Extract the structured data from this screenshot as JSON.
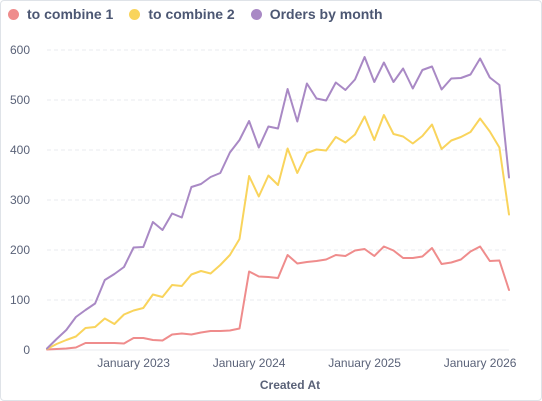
{
  "chart_data": {
    "type": "line",
    "xlabel": "Created At",
    "ylabel": "",
    "ylim": [
      0,
      600
    ],
    "yticks": [
      0,
      100,
      200,
      300,
      400,
      500,
      600
    ],
    "x_ticks": [
      {
        "label": "January 2023",
        "x": "2023-01"
      },
      {
        "label": "January 2024",
        "x": "2024-01"
      },
      {
        "label": "January 2025",
        "x": "2025-01"
      },
      {
        "label": "January 2026",
        "x": "2026-01"
      }
    ],
    "x": [
      "2022-04",
      "2022-05",
      "2022-06",
      "2022-07",
      "2022-08",
      "2022-09",
      "2022-10",
      "2022-11",
      "2022-12",
      "2023-01",
      "2023-02",
      "2023-03",
      "2023-04",
      "2023-05",
      "2023-06",
      "2023-07",
      "2023-08",
      "2023-09",
      "2023-10",
      "2023-11",
      "2023-12",
      "2024-01",
      "2024-02",
      "2024-03",
      "2024-04",
      "2024-05",
      "2024-06",
      "2024-07",
      "2024-08",
      "2024-09",
      "2024-10",
      "2024-11",
      "2024-12",
      "2025-01",
      "2025-02",
      "2025-03",
      "2025-04",
      "2025-05",
      "2025-06",
      "2025-07",
      "2025-08",
      "2025-09",
      "2025-10",
      "2025-11",
      "2025-12",
      "2026-01",
      "2026-02",
      "2026-03",
      "2026-04"
    ],
    "grid": true,
    "legend_position": "top-left",
    "series": [
      {
        "name": "to combine 1",
        "color": "#ef8c8c",
        "values": [
          1,
          2,
          3,
          5,
          14,
          14,
          14,
          14,
          13,
          24,
          24,
          20,
          19,
          31,
          33,
          31,
          35,
          38,
          38,
          39,
          43,
          157,
          147,
          146,
          144,
          190,
          173,
          176,
          178,
          181,
          190,
          188,
          199,
          202,
          188,
          207,
          199,
          184,
          184,
          187,
          204,
          172,
          175,
          181,
          197,
          207,
          178,
          179,
          120
        ]
      },
      {
        "name": "to combine 2",
        "color": "#f9d45c",
        "values": [
          2,
          12,
          20,
          27,
          44,
          46,
          63,
          52,
          71,
          79,
          84,
          111,
          106,
          130,
          128,
          151,
          158,
          153,
          170,
          190,
          222,
          348,
          307,
          349,
          330,
          403,
          354,
          394,
          401,
          399,
          426,
          415,
          431,
          467,
          420,
          470,
          432,
          427,
          413,
          428,
          451,
          402,
          419,
          426,
          436,
          463,
          437,
          405,
          271
        ]
      },
      {
        "name": "Orders by month",
        "color": "#a989c5",
        "values": [
          3,
          22,
          40,
          66,
          80,
          93,
          140,
          152,
          166,
          205,
          206,
          256,
          240,
          273,
          265,
          326,
          332,
          346,
          354,
          395,
          420,
          458,
          405,
          447,
          443,
          522,
          457,
          533,
          503,
          499,
          535,
          520,
          541,
          586,
          536,
          575,
          536,
          563,
          523,
          560,
          567,
          521,
          543,
          544,
          551,
          583,
          545,
          530,
          345
        ]
      }
    ]
  }
}
